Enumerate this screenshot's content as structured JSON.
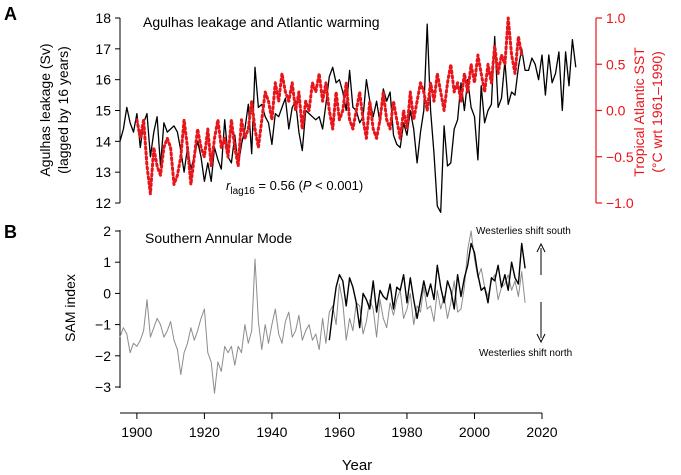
{
  "panels": {
    "A": {
      "letter": "A",
      "title": "Agulhas leakage and Atlantic warming",
      "ylabel_left_line1": "Agulhas leakage (Sv)",
      "ylabel_left_line2": "(lagged by 16 years)",
      "ylabel_right_line1": "Tropical Atlantic SST",
      "ylabel_right_line2": "(°C wrt 1961–1990)",
      "annotation": {
        "r_symbol": "r",
        "r_subscript": "lag16",
        "r_value": " = 0.56 (",
        "p_symbol": "P",
        "p_text": " < 0.001)"
      }
    },
    "B": {
      "letter": "B",
      "title": "Southern Annular Mode",
      "ylabel": "SAM index",
      "arrow_up_label": "Westerlies shift south",
      "arrow_down_label": "Westerlies shift north"
    }
  },
  "xlabel": "Year",
  "colors": {
    "agulhas": "#000000",
    "sst": "#e8151b",
    "sam_proxy": "#8c8c8c",
    "sam_obs": "#000000",
    "axis_right": "#e8151b"
  },
  "chart_data": [
    {
      "type": "line",
      "panel": "A",
      "title": "Agulhas leakage and Atlantic warming",
      "xlabel": "Year",
      "ylabel": "Agulhas leakage (Sv) (lagged by 16 years)",
      "ylabel_right": "Tropical Atlantic SST (°C wrt 1961–1990)",
      "xlim": [
        1895,
        2020
      ],
      "ylim": [
        12,
        18
      ],
      "ylim_right": [
        -1.0,
        1.0
      ],
      "xticks": [
        1900,
        1920,
        1940,
        1960,
        1980,
        2000,
        2020
      ],
      "yticks": [
        12,
        13,
        14,
        15,
        16,
        17,
        18
      ],
      "yticks_right": [
        "−1.0",
        "−0.5",
        "0.0",
        "0.5",
        "1.0"
      ],
      "series": [
        {
          "axis": "left",
          "style": "solid",
          "x": [
            1895,
            1896,
            1897,
            1898,
            1899,
            1900,
            1901,
            1902,
            1903,
            1904,
            1905,
            1906,
            1907,
            1908,
            1909,
            1910,
            1911,
            1912,
            1913,
            1914,
            1915,
            1916,
            1917,
            1918,
            1919,
            1920,
            1921,
            1922,
            1923,
            1924,
            1925,
            1926,
            1927,
            1928,
            1929,
            1930,
            1931,
            1932,
            1933,
            1934,
            1935,
            1936,
            1937,
            1938,
            1939,
            1940,
            1941,
            1942,
            1943,
            1944,
            1945,
            1946,
            1947,
            1948,
            1949,
            1950,
            1951,
            1952,
            1953,
            1954,
            1955,
            1956,
            1957,
            1958,
            1959,
            1960,
            1961,
            1962,
            1963,
            1964,
            1965,
            1966,
            1967,
            1968,
            1969,
            1970,
            1971,
            1972,
            1973,
            1974,
            1975,
            1976,
            1977,
            1978,
            1979,
            1980,
            1981,
            1982,
            1983,
            1984,
            1985,
            1986,
            1987,
            1988,
            1989,
            1990,
            1991,
            1992,
            1993,
            1994,
            1995,
            1996,
            1997,
            1998,
            1999,
            2000,
            2001,
            2002,
            2003,
            2004,
            2005,
            2006,
            2007,
            2008,
            2009,
            2010,
            2011,
            2012,
            2013,
            2014,
            2015,
            2016,
            2017,
            2018,
            2019,
            2020,
            2021,
            2022,
            2023,
            2024,
            2025,
            2026,
            2027,
            2028,
            2029,
            2030
          ],
          "values": [
            14.0,
            14.4,
            15.1,
            14.6,
            14.3,
            14.9,
            13.8,
            14.6,
            14.9,
            13.5,
            14.3,
            14.8,
            13.2,
            14.6,
            14.3,
            14.4,
            14.5,
            14.3,
            13.7,
            13.0,
            13.8,
            13.1,
            13.5,
            14.0,
            13.5,
            12.7,
            13.3,
            12.7,
            13.8,
            13.4,
            13.1,
            14.7,
            13.5,
            13.3,
            14.2,
            13.2,
            13.9,
            14.4,
            15.2,
            13.6,
            16.4,
            15.1,
            15.2,
            14.8,
            14.6,
            13.9,
            14.9,
            14.8,
            15.1,
            15.4,
            14.4,
            15.1,
            15.3,
            14.3,
            13.7,
            15.0,
            14.9,
            14.8,
            14.7,
            14.8,
            14.4,
            15.2,
            16.1,
            16.4,
            15.9,
            16.0,
            15.6,
            15.0,
            16.3,
            15.1,
            15.0,
            14.6,
            14.8,
            16.0,
            15.3,
            14.8,
            15.3,
            14.6,
            15.7,
            15.3,
            15.6,
            14.2,
            13.9,
            13.8,
            14.6,
            14.2,
            15.0,
            14.4,
            13.3,
            14.3,
            15.0,
            17.8,
            15.0,
            13.6,
            11.9,
            11.7,
            14.5,
            13.2,
            13.3,
            14.4,
            14.7,
            15.9,
            15.0,
            16.0,
            15.1,
            14.8,
            13.4,
            15.8,
            14.6,
            15.0,
            15.2,
            17.4,
            15.1,
            15.4,
            16.6,
            15.2,
            15.6,
            15.5,
            16.4,
            17.0,
            16.3,
            16.3,
            16.7,
            16.5,
            16.0,
            16.8,
            15.5,
            16.8,
            15.9,
            16.2,
            16.9,
            15.0,
            16.9,
            15.8,
            17.3,
            16.4
          ],
          "note": "x values are calendar years of the plotted (lag-shifted) series"
        },
        {
          "axis": "right",
          "style": "dotted",
          "x": [
            1895,
            1896,
            1897,
            1898,
            1899,
            1900,
            1901,
            1902,
            1903,
            1904,
            1905,
            1906,
            1907,
            1908,
            1909,
            1910,
            1911,
            1912,
            1913,
            1914,
            1915,
            1916,
            1917,
            1918,
            1919,
            1920,
            1921,
            1922,
            1923,
            1924,
            1925,
            1926,
            1927,
            1928,
            1929,
            1930,
            1931,
            1932,
            1933,
            1934,
            1935,
            1936,
            1937,
            1938,
            1939,
            1940,
            1941,
            1942,
            1943,
            1944,
            1945,
            1946,
            1947,
            1948,
            1949,
            1950,
            1951,
            1952,
            1953,
            1954,
            1955,
            1956,
            1957,
            1958,
            1959,
            1960,
            1961,
            1962,
            1963,
            1964,
            1965,
            1966,
            1967,
            1968,
            1969,
            1970,
            1971,
            1972,
            1973,
            1974,
            1975,
            1976,
            1977,
            1978,
            1979,
            1980,
            1981,
            1982,
            1983,
            1984,
            1985,
            1986,
            1987,
            1988,
            1989,
            1990,
            1991,
            1992,
            1993,
            1994,
            1995,
            1996,
            1997,
            1998,
            1999,
            2000,
            2001,
            2002,
            2003,
            2004,
            2005,
            2006,
            2007,
            2008,
            2009,
            2010,
            2011,
            2012,
            2013,
            2014
          ],
          "values": [
            null,
            null,
            null,
            null,
            null,
            -0.1,
            -0.3,
            -0.1,
            -0.6,
            -0.9,
            -0.4,
            -0.6,
            -0.7,
            -0.4,
            -0.3,
            -0.4,
            -0.8,
            -0.7,
            -0.5,
            -0.1,
            -0.4,
            -0.8,
            -0.5,
            -0.2,
            -0.4,
            -0.5,
            -0.2,
            -0.6,
            -0.3,
            -0.1,
            -0.4,
            -0.3,
            -0.5,
            -0.1,
            -0.4,
            -0.6,
            -0.1,
            -0.3,
            -0.2,
            0.1,
            -0.2,
            -0.4,
            -0.1,
            0.2,
            0.1,
            -0.1,
            0.3,
            0.1,
            0.4,
            0.2,
            0.1,
            0.3,
            0.0,
            0.2,
            -0.2,
            0.1,
            0.0,
            0.3,
            0.2,
            0.4,
            0.1,
            0.3,
            0.0,
            -0.2,
            0.2,
            -0.1,
            0.0,
            0.3,
            -0.1,
            -0.2,
            0.0,
            0.2,
            -0.1,
            -0.3,
            0.1,
            -0.2,
            -0.3,
            -0.1,
            0.2,
            -0.1,
            -0.2,
            0.1,
            -0.1,
            -0.3,
            0.0,
            -0.2,
            0.2,
            -0.1,
            0.1,
            0.3,
            0.2,
            0.0,
            0.3,
            0.1,
            0.4,
            0.2,
            0.0,
            0.3,
            0.5,
            0.2,
            0.3,
            0.1,
            0.4,
            0.2,
            0.5,
            0.3,
            0.6,
            0.4,
            0.2,
            0.5,
            0.3,
            0.7,
            0.4,
            0.6,
            0.5,
            1.0,
            0.6,
            0.4,
            0.8,
            0.6
          ]
        }
      ]
    },
    {
      "type": "line",
      "panel": "B",
      "title": "Southern Annular Mode",
      "xlabel": "Year",
      "ylabel": "SAM index",
      "xlim": [
        1895,
        2020
      ],
      "ylim": [
        -3.2,
        2.2
      ],
      "xticks": [
        1900,
        1920,
        1940,
        1960,
        1980,
        2000,
        2020
      ],
      "yticks": [
        -3,
        -2,
        -1,
        0,
        1,
        2
      ],
      "series": [
        {
          "style": "solid-grey",
          "x": [
            1895,
            1896,
            1897,
            1898,
            1899,
            1900,
            1901,
            1902,
            1903,
            1904,
            1905,
            1906,
            1907,
            1908,
            1909,
            1910,
            1911,
            1912,
            1913,
            1914,
            1915,
            1916,
            1917,
            1918,
            1919,
            1920,
            1921,
            1922,
            1923,
            1924,
            1925,
            1926,
            1927,
            1928,
            1929,
            1930,
            1931,
            1932,
            1933,
            1934,
            1935,
            1936,
            1937,
            1938,
            1939,
            1940,
            1941,
            1942,
            1943,
            1944,
            1945,
            1946,
            1947,
            1948,
            1949,
            1950,
            1951,
            1952,
            1953,
            1954,
            1955,
            1956,
            1957,
            1958,
            1959,
            1960,
            1961,
            1962,
            1963,
            1964,
            1965,
            1966,
            1967,
            1968,
            1969,
            1970,
            1971,
            1972,
            1973,
            1974,
            1975,
            1976,
            1977,
            1978,
            1979,
            1980,
            1981,
            1982,
            1983,
            1984,
            1985,
            1986,
            1987,
            1988,
            1989,
            1990,
            1991,
            1992,
            1993,
            1994,
            1995,
            1996,
            1997,
            1998,
            1999,
            2000,
            2001,
            2002,
            2003,
            2004,
            2005,
            2006,
            2007,
            2008,
            2009,
            2010,
            2011,
            2012,
            2013,
            2014,
            2015
          ],
          "values": [
            -1.4,
            -1.1,
            -1.3,
            -1.9,
            -1.6,
            -1.7,
            -1.5,
            -1.2,
            -0.2,
            -1.4,
            -1.1,
            -0.8,
            -1.0,
            -1.4,
            -1.2,
            -0.9,
            -1.5,
            -1.8,
            -2.6,
            -1.9,
            -1.6,
            -1.1,
            -1.5,
            -1.2,
            -0.8,
            -0.5,
            -1.9,
            -2.2,
            -3.2,
            -2.2,
            -2.5,
            -1.7,
            -1.9,
            -1.7,
            -2.3,
            -1.7,
            -1.9,
            -1.0,
            -1.6,
            -1.2,
            1.1,
            -0.9,
            -1.8,
            -1.0,
            -1.6,
            -1.0,
            -0.5,
            -1.3,
            -1.6,
            -0.9,
            -0.6,
            -1.4,
            -1.2,
            -0.7,
            -1.5,
            -1.2,
            -1.0,
            -1.5,
            -1.3,
            -1.8,
            -0.8,
            -1.6,
            -0.6,
            -0.4,
            -1.0,
            0.3,
            -0.3,
            -1.5,
            -0.8,
            -1.2,
            -0.3,
            -0.4,
            -1.3,
            -0.9,
            -0.2,
            -0.5,
            -1.4,
            -0.2,
            -0.8,
            -1.1,
            -0.3,
            -0.7,
            -0.2,
            0.1,
            -0.8,
            -0.5,
            0.0,
            -1.0,
            -0.4,
            -0.6,
            0.2,
            -0.5,
            -0.4,
            -0.9,
            0.1,
            -0.5,
            -0.1,
            -0.8,
            -0.3,
            0.4,
            -0.6,
            -0.5,
            0.2,
            1.4,
            2.0,
            1.1,
            0.5,
            0.8,
            0.2,
            -0.1,
            0.4,
            0.6,
            -0.2,
            0.2,
            0.3,
            0.6,
            0.1,
            0.4,
            -0.1,
            0.7,
            -0.3
          ]
        },
        {
          "style": "solid-black",
          "x": [
            1957,
            1958,
            1959,
            1960,
            1961,
            1962,
            1963,
            1964,
            1965,
            1966,
            1967,
            1968,
            1969,
            1970,
            1971,
            1972,
            1973,
            1974,
            1975,
            1976,
            1977,
            1978,
            1979,
            1980,
            1981,
            1982,
            1983,
            1984,
            1985,
            1986,
            1987,
            1988,
            1989,
            1990,
            1991,
            1992,
            1993,
            1994,
            1995,
            1996,
            1997,
            1998,
            1999,
            2000,
            2001,
            2002,
            2003,
            2004,
            2005,
            2006,
            2007,
            2008,
            2009,
            2010,
            2011,
            2012,
            2013,
            2014,
            2015
          ],
          "values": [
            -1.5,
            -0.6,
            0.2,
            0.6,
            0.4,
            -0.4,
            0.5,
            0.2,
            -0.3,
            -1.1,
            0.0,
            -0.2,
            -0.5,
            0.4,
            -0.6,
            0.1,
            -0.1,
            -0.2,
            0.3,
            -0.5,
            0.2,
            0.1,
            0.6,
            -0.3,
            0.5,
            -0.2,
            -0.8,
            -0.2,
            0.4,
            -0.1,
            0.3,
            -0.2,
            0.9,
            0.2,
            -0.3,
            0.4,
            0.1,
            -0.5,
            0.6,
            -0.1,
            0.5,
            0.9,
            1.6,
            1.3,
            0.6,
            0.1,
            0.2,
            -0.3,
            0.5,
            0.4,
            0.9,
            0.2,
            0.6,
            0.1,
            1.0,
            0.5,
            0.3,
            1.6,
            0.8
          ]
        }
      ]
    }
  ]
}
